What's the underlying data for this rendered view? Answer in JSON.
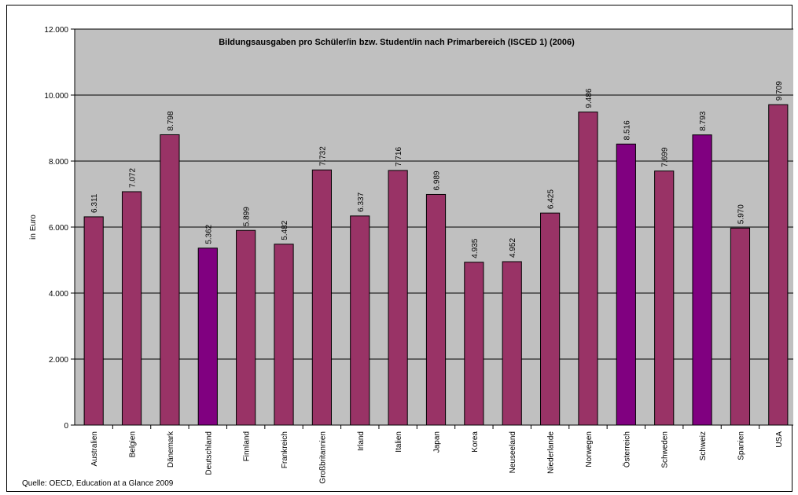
{
  "chart_data": {
    "type": "bar",
    "title": "Bildungsausgaben pro Schüler/in bzw. Student/in nach Primarbereich (ISCED 1) (2006)",
    "ylabel": "in Euro",
    "xlabel": "",
    "ylim": [
      0,
      12000
    ],
    "yticks": [
      0,
      2000,
      4000,
      6000,
      8000,
      10000,
      12000
    ],
    "ytick_labels": [
      "0",
      "2.000",
      "4.000",
      "6.000",
      "8.000",
      "10.000",
      "12.000"
    ],
    "grid": true,
    "categories": [
      "Australien",
      "Belgien",
      "Dänemark",
      "Deutschland",
      "Finnland",
      "Frankreich",
      "Großbritannien",
      "Irland",
      "Italien",
      "Japan",
      "Korea",
      "Neuseeland",
      "Niederlande",
      "Norwegen",
      "Österreich",
      "Schweden",
      "Schweiz",
      "Spanien",
      "USA"
    ],
    "values": [
      6311,
      7072,
      8798,
      5362,
      5899,
      5482,
      7732,
      6337,
      7716,
      6989,
      4935,
      4952,
      6425,
      9486,
      8516,
      7699,
      8793,
      5970,
      9709
    ],
    "value_labels": [
      "6.311",
      "7.072",
      "8.798",
      "5.362",
      "5.899",
      "5.482",
      "7.732",
      "6.337",
      "7.716",
      "6.989",
      "4.935",
      "4.952",
      "6.425",
      "9.486",
      "8.516",
      "7.699",
      "8.793",
      "5.970",
      "9.709"
    ],
    "colors": {
      "default_bar": "#993366",
      "highlight_bar": "#800080",
      "plot_background": "#c0c0c0",
      "gridline": "#000000"
    },
    "highlighted": [
      "Deutschland",
      "Österreich",
      "Schweiz"
    ]
  },
  "footer": {
    "source": "Quelle: OECD, Education at a Glance 2009"
  }
}
